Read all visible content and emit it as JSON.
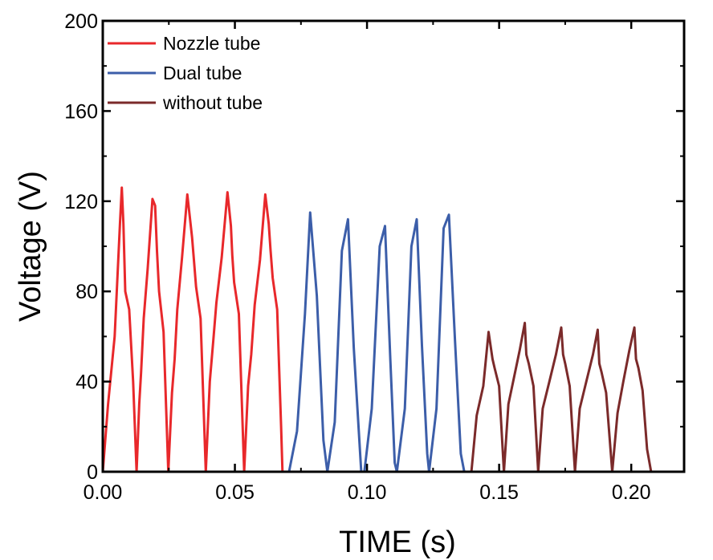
{
  "chart_data": {
    "type": "line",
    "title": "",
    "xlabel": "TIME (s)",
    "ylabel": "Voltage (V)",
    "xlim": [
      0,
      0.22
    ],
    "ylim": [
      0,
      200
    ],
    "xticks": [
      0.0,
      0.05,
      0.1,
      0.15,
      0.2
    ],
    "xtick_labels": [
      "0.00",
      "0.05",
      "0.10",
      "0.15",
      "0.20"
    ],
    "yticks": [
      0,
      40,
      80,
      120,
      160,
      200
    ],
    "ytick_labels": [
      "0",
      "40",
      "80",
      "120",
      "160",
      "200"
    ],
    "grid": false,
    "legend_position": "top-left",
    "series": [
      {
        "name": "Nozzle tube",
        "color": "#e8282b",
        "x": [
          0.0,
          0.002,
          0.0045,
          0.0065,
          0.0072,
          0.0078,
          0.0085,
          0.01,
          0.0115,
          0.0128,
          0.0138,
          0.0145,
          0.0155,
          0.017,
          0.0188,
          0.0198,
          0.0205,
          0.0213,
          0.023,
          0.0248,
          0.0262,
          0.0272,
          0.0282,
          0.03,
          0.032,
          0.0338,
          0.0345,
          0.0353,
          0.037,
          0.039,
          0.0405,
          0.0418,
          0.043,
          0.045,
          0.0472,
          0.0485,
          0.049,
          0.0497,
          0.0515,
          0.0535,
          0.055,
          0.0562,
          0.0575,
          0.0595,
          0.0615,
          0.0628,
          0.0635,
          0.0643,
          0.066,
          0.0675,
          0.068
        ],
        "y": [
          0,
          30,
          60,
          110,
          126,
          110,
          80,
          72,
          40,
          0,
          30,
          44,
          68,
          90,
          121,
          118,
          98,
          80,
          62,
          0,
          35,
          50,
          72,
          95,
          123,
          104,
          94,
          82,
          68,
          0,
          40,
          58,
          75,
          95,
          124,
          109,
          96,
          84,
          70,
          0,
          38,
          52,
          74,
          94,
          123,
          110,
          98,
          86,
          72,
          20,
          0
        ]
      },
      {
        "name": "Dual tube",
        "color": "#3c5ea9",
        "x": [
          0.0705,
          0.0735,
          0.0765,
          0.0785,
          0.081,
          0.0835,
          0.085,
          0.0878,
          0.0905,
          0.0928,
          0.095,
          0.0978,
          0.099,
          0.1018,
          0.1048,
          0.1068,
          0.1088,
          0.1105,
          0.1113,
          0.1143,
          0.1168,
          0.1188,
          0.1208,
          0.1228,
          0.1235,
          0.1263,
          0.129,
          0.131,
          0.1333,
          0.1355,
          0.1368
        ],
        "y": [
          0,
          18,
          70,
          115,
          78,
          14,
          0,
          22,
          98,
          112,
          55,
          0,
          0,
          28,
          100,
          109,
          50,
          4,
          0,
          28,
          100,
          112,
          56,
          8,
          0,
          28,
          108,
          114,
          58,
          8,
          0
        ],
        "x_note": "estimated"
      },
      {
        "name": "without tube",
        "color": "#7b2a2a",
        "x": [
          0.1395,
          0.1415,
          0.144,
          0.146,
          0.1475,
          0.1483,
          0.15,
          0.1518,
          0.1535,
          0.1553,
          0.1578,
          0.1597,
          0.1603,
          0.1612,
          0.163,
          0.1648,
          0.1665,
          0.169,
          0.1715,
          0.1735,
          0.1742,
          0.175,
          0.1767,
          0.1787,
          0.1805,
          0.183,
          0.1855,
          0.1873,
          0.1879,
          0.1888,
          0.1905,
          0.1928,
          0.1948,
          0.197,
          0.1993,
          0.2012,
          0.2018,
          0.2027,
          0.2043,
          0.206,
          0.2075
        ],
        "y": [
          0,
          25,
          38,
          62,
          50,
          46,
          38,
          0,
          30,
          40,
          54,
          66,
          52,
          48,
          38,
          0,
          28,
          40,
          52,
          64,
          52,
          48,
          38,
          0,
          28,
          40,
          52,
          63,
          48,
          44,
          35,
          0,
          26,
          40,
          54,
          64,
          50,
          46,
          36,
          10,
          0
        ]
      }
    ]
  }
}
